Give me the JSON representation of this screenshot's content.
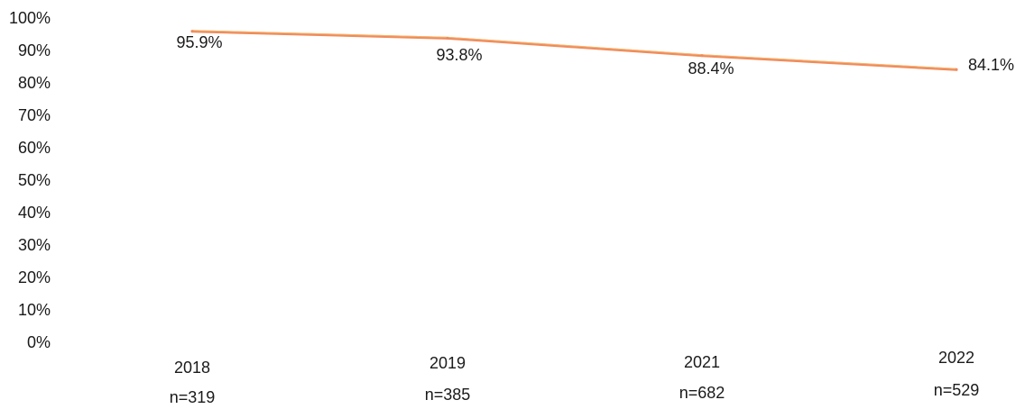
{
  "chart_data": {
    "type": "line",
    "categories": [
      "2018",
      "2019",
      "2021",
      "2022"
    ],
    "sample_sizes": [
      "n=319",
      "n=385",
      "n=682",
      "n=529"
    ],
    "series": [
      {
        "values": [
          95.9,
          93.8,
          88.4,
          84.1
        ],
        "color": "#f08a5d"
      }
    ],
    "data_labels": [
      "95.9%",
      "93.8%",
      "88.4%",
      "84.1%"
    ],
    "yticks": [
      "0%",
      "10%",
      "20%",
      "30%",
      "40%",
      "50%",
      "60%",
      "70%",
      "80%",
      "90%",
      "100%"
    ],
    "ylim": [
      0,
      100
    ],
    "grid": false,
    "legend": false
  }
}
